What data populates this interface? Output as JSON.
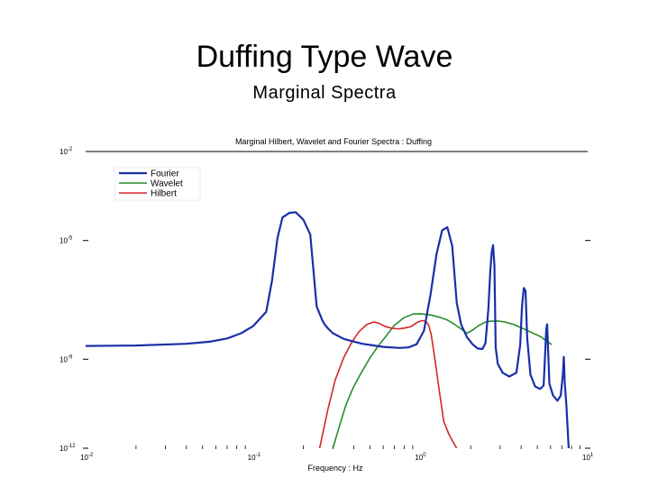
{
  "slide": {
    "title": "Duffing Type Wave",
    "subtitle": "Marginal Spectra"
  },
  "chart_data": {
    "type": "line",
    "title": "Marginal Hilbert, Wavelet and Fourier Spectra : Duffing",
    "xlabel": "Frequency : Hz",
    "ylabel": "",
    "xscale": "log",
    "yscale": "log",
    "xlim": [
      0.01,
      10
    ],
    "ylim": [
      1e-12,
      0.01
    ],
    "x_ticks": [
      {
        "value": 0.01,
        "mantissa": "10",
        "exp": "-2"
      },
      {
        "value": 0.1,
        "mantissa": "10",
        "exp": "-1"
      },
      {
        "value": 1,
        "mantissa": "10",
        "exp": "0"
      },
      {
        "value": 10,
        "mantissa": "10",
        "exp": "1"
      }
    ],
    "y_ticks": [
      {
        "value": 0.01,
        "mantissa": "10",
        "exp": "-2"
      },
      {
        "value": 1e-05,
        "mantissa": "10",
        "exp": "-5"
      },
      {
        "value": 1e-09,
        "mantissa": "10",
        "exp": "-9"
      },
      {
        "value": 1e-12,
        "mantissa": "10",
        "exp": "-12"
      }
    ],
    "legend_position": "top-left",
    "series": [
      {
        "name": "Fourier",
        "color": "#1a2fa8",
        "x": [
          0.01,
          0.02,
          0.04,
          0.055,
          0.07,
          0.085,
          0.1,
          0.12,
          0.13,
          0.14,
          0.15,
          0.165,
          0.18,
          0.2,
          0.22,
          0.24,
          0.26,
          0.27,
          0.28,
          0.3,
          0.35,
          0.45,
          0.6,
          0.75,
          0.85,
          0.95,
          1.05,
          1.15,
          1.25,
          1.35,
          1.45,
          1.55,
          1.65,
          1.75,
          1.9,
          2.05,
          2.2,
          2.35,
          2.45,
          2.55,
          2.62,
          2.67,
          2.72,
          2.77,
          2.82,
          2.9,
          3.1,
          3.4,
          3.75,
          3.95,
          4.05,
          4.15,
          4.25,
          4.35,
          4.55,
          4.85,
          5.2,
          5.45,
          5.55,
          5.65,
          5.72,
          5.8,
          5.9,
          6.2,
          6.6,
          6.9,
          7.1,
          7.2,
          7.3,
          7.45,
          7.7
        ],
        "y": [
          2.8e-09,
          2.9e-09,
          3.3e-09,
          3.9e-09,
          5e-09,
          7.5e-09,
          1.3e-08,
          4e-08,
          4.5e-07,
          1.2e-05,
          6e-05,
          8.5e-05,
          9e-05,
          5e-05,
          1.6e-05,
          6e-08,
          2e-08,
          1.4e-08,
          1.1e-08,
          7.5e-09,
          4.8e-09,
          3.3e-09,
          2.6e-09,
          2.4e-09,
          2.5e-09,
          3.2e-09,
          9e-09,
          1.5e-07,
          3.5e-06,
          2.2e-05,
          2.8e-05,
          6.5e-06,
          8e-08,
          1.5e-08,
          5.5e-09,
          3.2e-09,
          2.3e-09,
          2.2e-09,
          3.5e-09,
          5e-08,
          1e-06,
          4e-06,
          7e-06,
          1.5e-06,
          2.5e-09,
          7e-10,
          3.5e-10,
          2.6e-10,
          3.5e-10,
          3e-09,
          6e-08,
          2.5e-07,
          2e-07,
          5e-09,
          3e-10,
          1.2e-10,
          1e-10,
          1.3e-10,
          1e-09,
          1e-08,
          1.5e-08,
          2e-09,
          1.5e-10,
          6e-11,
          4e-11,
          6e-11,
          3e-10,
          1.2e-09,
          1.5e-10,
          3e-11,
          1e-12
        ]
      },
      {
        "name": "Wavelet",
        "color": "#2a8c2a",
        "x": [
          0.3,
          0.33,
          0.36,
          0.4,
          0.45,
          0.5,
          0.56,
          0.63,
          0.7,
          0.8,
          0.9,
          1.0,
          1.15,
          1.3,
          1.45,
          1.6,
          1.75,
          1.9,
          2.05,
          2.2,
          2.4,
          2.6,
          2.9,
          3.2,
          3.6,
          4.0,
          4.5,
          5.0,
          5.3,
          5.5,
          5.8,
          6.1
        ],
        "y": [
          1e-12,
          6e-12,
          3e-11,
          1.2e-10,
          4e-10,
          1.1e-09,
          2.8e-09,
          6.5e-09,
          1.4e-08,
          2.5e-08,
          3.3e-08,
          3.4e-08,
          3.1e-08,
          2.6e-08,
          2.1e-08,
          1.5e-08,
          1.05e-08,
          7.5e-09,
          9.5e-09,
          1.3e-08,
          1.7e-08,
          1.9e-08,
          1.95e-08,
          1.8e-08,
          1.5e-08,
          1.15e-08,
          8.5e-09,
          6.5e-09,
          5.5e-09,
          4.6e-09,
          3.8e-09,
          3.1e-09
        ]
      },
      {
        "name": "Hilbert",
        "color": "#d42828",
        "x": [
          0.25,
          0.28,
          0.31,
          0.35,
          0.39,
          0.43,
          0.48,
          0.53,
          0.57,
          0.62,
          0.68,
          0.74,
          0.8,
          0.88,
          0.95,
          1.02,
          1.08,
          1.12,
          1.16,
          1.2,
          1.25,
          1.3,
          1.38,
          1.48,
          1.58,
          1.65
        ],
        "y": [
          1e-12,
          2e-11,
          2e-10,
          1.2e-09,
          3.8e-09,
          8.5e-09,
          1.5e-08,
          1.8e-08,
          1.6e-08,
          1.25e-08,
          1.1e-08,
          1.05e-08,
          1.12e-08,
          1.25e-08,
          1.7e-08,
          2e-08,
          1.9e-08,
          1.4e-08,
          7e-09,
          2e-09,
          4e-10,
          8e-11,
          8e-12,
          3e-12,
          1.5e-12,
          1e-12
        ]
      }
    ]
  }
}
